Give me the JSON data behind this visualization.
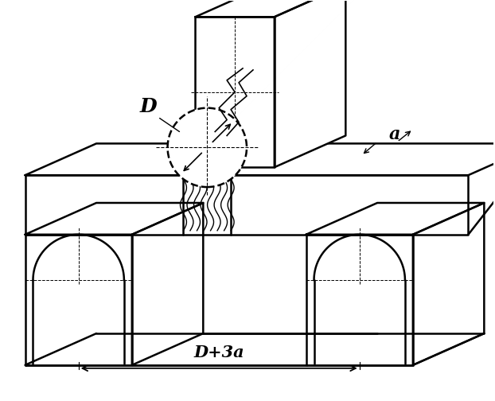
{
  "bg_color": "#ffffff",
  "lc": "#000000",
  "lw": 1.8,
  "lw_thin": 0.8,
  "label_D": "D",
  "label_a": "a",
  "label_dim": "D+3a",
  "fig_width": 6.22,
  "fig_height": 5.04,
  "dpi": 100
}
